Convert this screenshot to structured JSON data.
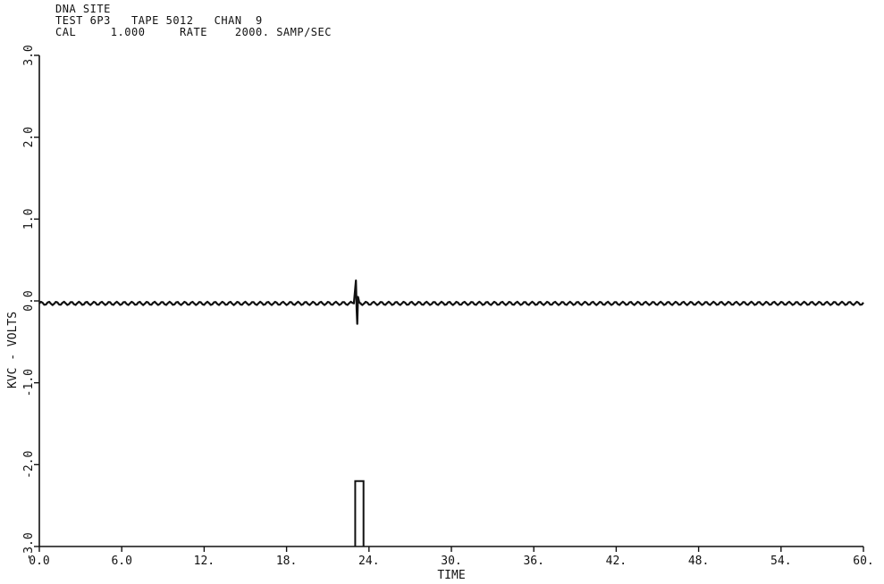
{
  "header": {
    "line1": "DNA SITE",
    "line2": "TEST 6P3   TAPE 5012   CHAN  9",
    "line3": "CAL     1.000     RATE    2000. SAMP/SEC"
  },
  "chart_data": {
    "type": "line",
    "title": "",
    "xlabel": "TIME",
    "ylabel": "KVC - VOLTS",
    "xlim": [
      0,
      60
    ],
    "ylim": [
      -3.0,
      3.0
    ],
    "x_ticks": [
      "0.0",
      "6.0",
      "12.",
      "18.",
      "24.",
      "30.",
      "36.",
      "42.",
      "48.",
      "54.",
      "60."
    ],
    "y_ticks": [
      "-3.0",
      "-2.0",
      "-1.0",
      "0.0",
      "1.0",
      "2.0",
      "3.0"
    ],
    "grid": false,
    "series": [
      {
        "values_description": "baseline signal",
        "x": [
          0,
          22.9,
          23.0,
          23.05,
          23.1,
          23.15,
          23.2,
          23.3,
          23.4,
          60
        ],
        "y": [
          -0.03,
          -0.03,
          0.15,
          0.25,
          -0.1,
          -0.28,
          0.05,
          -0.02,
          -0.03,
          -0.03
        ],
        "ripple_amplitude": 0.02
      },
      {
        "values_description": "gate pulse",
        "x": [
          23.0,
          23.0,
          23.6,
          23.6
        ],
        "y": [
          -3.0,
          -2.2,
          -2.2,
          -3.0
        ]
      }
    ],
    "colors": {
      "ink": "#111111",
      "background": "#ffffff"
    }
  }
}
